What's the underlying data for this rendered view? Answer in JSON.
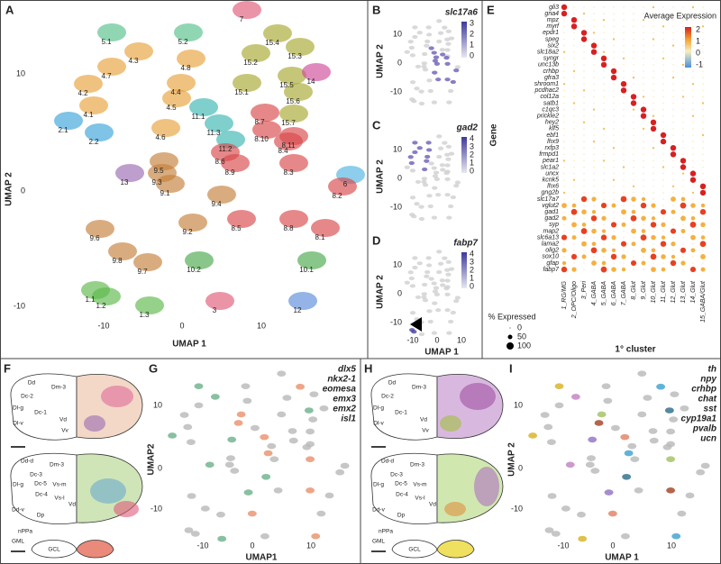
{
  "panels": {
    "A": {
      "label": "A",
      "clusters": [
        "5.1",
        "5.2",
        "7",
        "15.4",
        "15.3",
        "15.2",
        "4.3",
        "4.8",
        "4.7",
        "4.4",
        "4.2",
        "15.1",
        "15.5",
        "14",
        "15.6",
        "4.5",
        "4.1",
        "15.7",
        "4.6",
        "11.1",
        "8.7",
        "11.3",
        "8.10",
        "8.11",
        "2.1",
        "2.2",
        "11.2",
        "8.6",
        "8.4",
        "8.9",
        "13",
        "9.5",
        "9.3",
        "8.3",
        "6",
        "9.1",
        "9.4",
        "8.2",
        "8.5",
        "8.8",
        "8.1",
        "9.6",
        "9.2",
        "9.8",
        "9.7",
        "10.2",
        "10.1",
        "1.1",
        "1.3",
        "1.2",
        "3",
        "12"
      ],
      "x_axis": "UMAP 1",
      "y_axis": "UMAP 2",
      "x_ticks": [
        -10,
        0,
        10
      ],
      "y_ticks": [
        10,
        0,
        -10
      ]
    },
    "B": {
      "label": "B",
      "gene": "slc17a6",
      "scale": [
        3,
        2,
        1,
        0
      ],
      "y_axis": "UMAP 2",
      "y_ticks": [
        10,
        0,
        -10
      ]
    },
    "C": {
      "label": "C",
      "gene": "gad2",
      "scale": [
        4,
        3,
        2,
        1,
        0
      ],
      "y_axis": "UMAP 2",
      "y_ticks": [
        10,
        0,
        -10
      ]
    },
    "D": {
      "label": "D",
      "gene": "fabp7",
      "scale": [
        4,
        3,
        2,
        1,
        0
      ],
      "y_axis": "UMAP 2",
      "y_ticks": [
        10,
        0,
        -10
      ],
      "x_axis": "UMAP 1",
      "x_ticks": [
        -10,
        0,
        10
      ]
    },
    "E": {
      "label": "E",
      "legend_title": "Average Expression",
      "legend_ticks": [
        2,
        1,
        0,
        -1
      ],
      "y_axis": "Gene",
      "genes": [
        "gli3",
        "gna4",
        "mpz",
        "myrf",
        "epdr1",
        "speg",
        "six2",
        "slc18a2",
        "syngr",
        "unc13b",
        "crhbp",
        "gfra3",
        "shroom1",
        "pcdhac2",
        "col12a",
        "satb1",
        "c1qc3",
        "prickle2",
        "hey2",
        "klf5",
        "ebf1",
        "lhx9",
        "rxfp3",
        "frmpd1",
        "pear1",
        "slc1a2",
        "uncx",
        "kcnk5",
        "lhx6",
        "gng2b",
        "slc17a7",
        "vglut2",
        "gad1",
        "gad2",
        "syp",
        "map2",
        "slc6a13",
        "lama2",
        "olig2",
        "sox10",
        "gfap",
        "fabp7"
      ],
      "clusters": [
        "1_RG/MG",
        "2_OPC/Oligo",
        "3_Peri",
        "4_GABA",
        "5_GABA",
        "6_GABA",
        "7_GABA",
        "8_Glut",
        "9_Glut",
        "10_Glut",
        "11_Glut",
        "12_Glut",
        "13_Glut",
        "14_Glut",
        "15_GABA/Glut"
      ],
      "x_axis": "1° cluster",
      "size_title": "% Expressed",
      "size_ticks": [
        0,
        50,
        100
      ]
    },
    "F": {
      "label": "F",
      "regions": [
        "Dd",
        "Dm-3",
        "Dc-2",
        "Dl-g",
        "Dc-1",
        "Vd",
        "Dl-v",
        "Vv",
        "Dd-d",
        "Dm-3",
        "Dc-3",
        "Dl-g",
        "Dc-5",
        "Vs-m",
        "Dc-4",
        "Vs-l",
        "Vd",
        "Dd-v",
        "Dp",
        "nPPa",
        "GML",
        "GCL"
      ]
    },
    "G": {
      "label": "G",
      "genes": [
        "dlx5",
        "nkx2-1",
        "eomesa",
        "emx3",
        "emx2",
        "isl1"
      ],
      "x_axis": "UMAP1",
      "y_axis": "UMAP2",
      "x_ticks": [
        -10,
        0,
        10
      ],
      "y_ticks": [
        10,
        0,
        -10
      ]
    },
    "H": {
      "label": "H",
      "regions": [
        "Dd",
        "Dm-3",
        "Dc-2",
        "Dl-g",
        "Dc-1",
        "Vd",
        "Dl-v",
        "Vv",
        "Dd-d",
        "Dm-3",
        "Dc-3",
        "Dl-g",
        "Dc-5",
        "Vs-m",
        "Dc-4",
        "Vs-l",
        "Vd",
        "Dd-v",
        "Dp",
        "nPPa",
        "GML",
        "GCL"
      ]
    },
    "I": {
      "label": "I",
      "genes": [
        "th",
        "npy",
        "crhbp",
        "chat",
        "sst",
        "cyp19a1",
        "pvalb",
        "ucn"
      ],
      "x_axis": "UMAP 1",
      "y_axis": "UMAP 2",
      "x_ticks": [
        -10,
        0,
        10
      ],
      "y_ticks": [
        10,
        0,
        -10
      ]
    }
  }
}
